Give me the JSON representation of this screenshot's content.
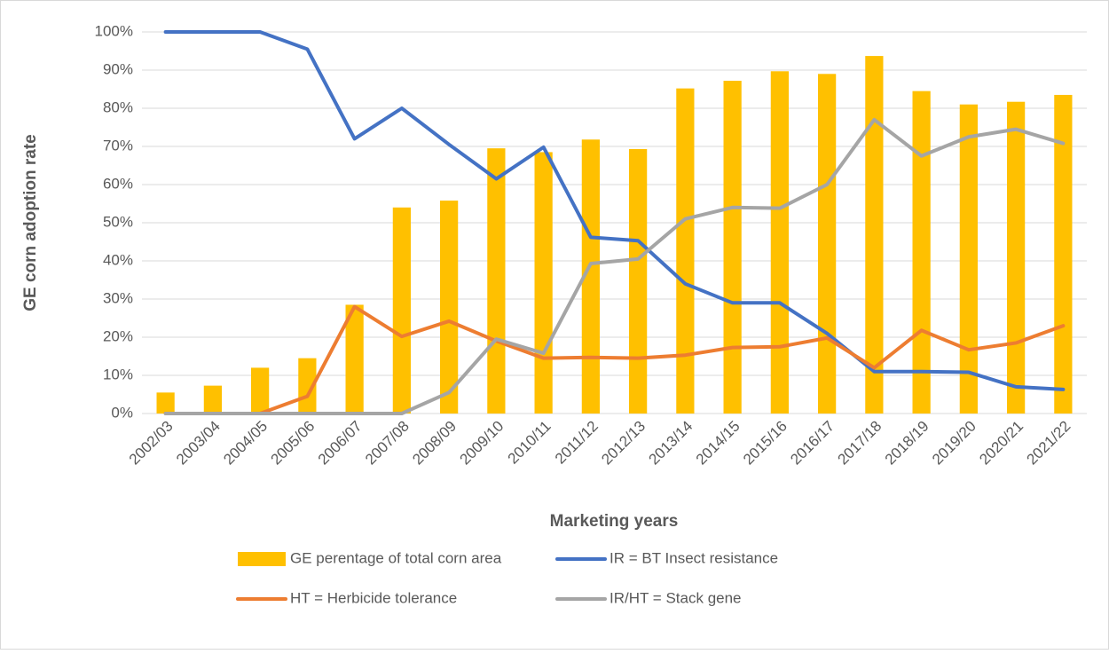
{
  "chart_data": {
    "type": "bar_line",
    "x_label": "Marketing years",
    "y_label": "GE corn adoption rate",
    "categories": [
      "2002/03",
      "2003/04",
      "2004/05",
      "2005/06",
      "2006/07",
      "2007/08",
      "2008/09",
      "2009/10",
      "2010/11",
      "2011/12",
      "2012/13",
      "2013/14",
      "2014/15",
      "2015/16",
      "2016/17",
      "2017/18",
      "2018/19",
      "2019/20",
      "2020/21",
      "2021/22"
    ],
    "series": [
      {
        "name": "GE perentage of total corn area",
        "type": "bar",
        "color": "#FFC000",
        "values": [
          5.5,
          7.3,
          12,
          14.5,
          28.5,
          54,
          55.8,
          69.5,
          68.5,
          71.8,
          69.3,
          85.2,
          87.2,
          89.7,
          89,
          93.7,
          84.5,
          81,
          81.7,
          83.5
        ]
      },
      {
        "name": "IR = BT Insect resistance",
        "type": "line",
        "color": "#4472C4",
        "values": [
          100,
          100,
          100,
          95.5,
          72,
          80,
          70.5,
          61.5,
          69.8,
          46.2,
          45.3,
          34,
          29,
          29,
          21,
          11,
          11,
          10.8,
          7,
          6.3
        ]
      },
      {
        "name": "HT = Herbicide tolerance",
        "type": "line",
        "color": "#ED7D31",
        "values": [
          0,
          0,
          0,
          4.5,
          28,
          20.2,
          24.2,
          19,
          14.5,
          14.7,
          14.5,
          15.3,
          17.3,
          17.5,
          19.8,
          12,
          21.8,
          16.7,
          18.5,
          23
        ]
      },
      {
        "name": "IR/HT = Stack gene",
        "type": "line",
        "color": "#A5A5A5",
        "values": [
          0,
          0,
          0,
          0,
          0,
          0,
          5.5,
          19.5,
          15.8,
          39.3,
          40.5,
          51,
          54,
          53.8,
          60,
          77,
          67.5,
          72.5,
          74.5,
          70.8
        ]
      }
    ],
    "ylim": [
      0,
      100
    ],
    "yticks": [
      {
        "value": 0,
        "label": "0%"
      },
      {
        "value": 10,
        "label": "10%"
      },
      {
        "value": 20,
        "label": "20%"
      },
      {
        "value": 30,
        "label": "30%"
      },
      {
        "value": 40,
        "label": "40%"
      },
      {
        "value": 50,
        "label": "50%"
      },
      {
        "value": 60,
        "label": "60%"
      },
      {
        "value": 70,
        "label": "70%"
      },
      {
        "value": 80,
        "label": "80%"
      },
      {
        "value": 90,
        "label": "90%"
      },
      {
        "value": 100,
        "label": "100%"
      }
    ],
    "grid": true,
    "legend": "bottom"
  }
}
